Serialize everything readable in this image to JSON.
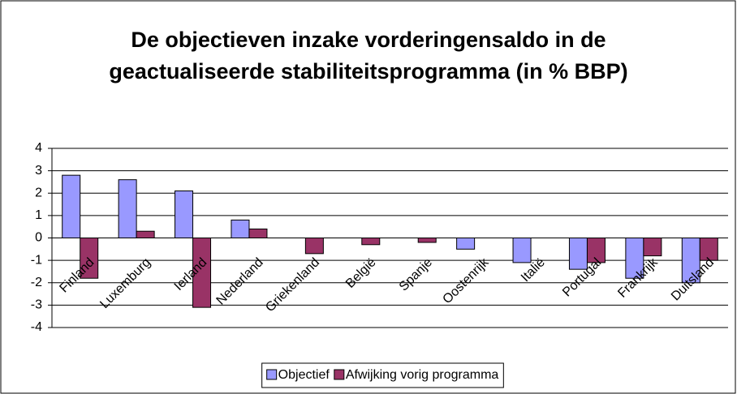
{
  "chart_data": {
    "type": "bar",
    "title": "De objectieven inzake vorderingensaldo in de geactualiseerde stabiliteitsprogramma (in % BBP)",
    "categories": [
      "Finland",
      "Luxemburg",
      "Ierland",
      "Nederland",
      "Griekenland",
      "België",
      "Spanje",
      "Oostenrijk",
      "Italië",
      "Portugal",
      "Frankrijk",
      "Duitsland"
    ],
    "series": [
      {
        "name": "Objectief",
        "color": "#9999ff",
        "values": [
          2.8,
          2.6,
          2.1,
          0.8,
          0,
          0,
          0,
          -0.5,
          -1.1,
          -1.4,
          -1.8,
          -2.0
        ]
      },
      {
        "name": "Afwijking vorig programma",
        "color": "#993366",
        "values": [
          -1.8,
          0.3,
          -3.1,
          0.4,
          -0.7,
          -0.3,
          -0.2,
          0,
          0,
          -1.1,
          -0.8,
          -1.0
        ]
      }
    ],
    "ylim": [
      -4,
      4
    ],
    "yticks": [
      -4,
      -3,
      -2,
      -1,
      0,
      1,
      2,
      3,
      4
    ],
    "grid": true,
    "legend": "bottom"
  }
}
